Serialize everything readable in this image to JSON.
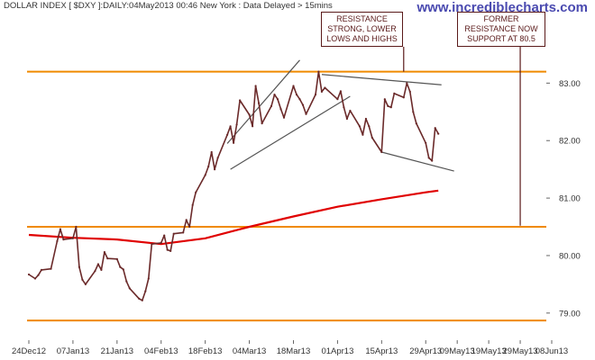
{
  "header": {
    "title": "DOLLAR INDEX [ $DXY ]:DAILY:04May2013 00:46 New York : Data Delayed > 15mins",
    "watermark": "www.incrediblecharts.com"
  },
  "callouts": [
    {
      "lines": [
        "RESISTANCE",
        "STRONG, LOWER",
        "LOWS AND HIGHS"
      ]
    },
    {
      "lines": [
        "FORMER",
        "RESISTANCE NOW",
        "SUPPORT AT 80.5"
      ]
    }
  ],
  "colors": {
    "price": "#6b2a2a",
    "ma": "#e00000",
    "levels": "#f08a00",
    "trend": "#555555",
    "callout_border": "#5a1a1a",
    "watermark": "#4a4ab0"
  },
  "chart_data": {
    "type": "line",
    "ylim": [
      78.7,
      83.35
    ],
    "yticks": [
      79.0,
      80.0,
      81.0,
      82.0,
      83.0
    ],
    "ytick_labels": [
      "79.00",
      "80.00",
      "81.00",
      "82.00",
      "83.00"
    ],
    "xticks": [
      {
        "label": "24Dec12",
        "date": "2012-12-24"
      },
      {
        "label": "07Jan13",
        "date": "2013-01-07"
      },
      {
        "label": "21Jan13",
        "date": "2013-01-21"
      },
      {
        "label": "04Feb13",
        "date": "2013-02-04"
      },
      {
        "label": "18Feb13",
        "date": "2013-02-18"
      },
      {
        "label": "04Mar13",
        "date": "2013-03-04"
      },
      {
        "label": "18Mar13",
        "date": "2013-03-18"
      },
      {
        "label": "01Apr13",
        "date": "2013-04-01"
      },
      {
        "label": "15Apr13",
        "date": "2013-04-15"
      },
      {
        "label": "29Apr13",
        "date": "2013-04-29"
      },
      {
        "label": "09May13",
        "date": "2013-05-09"
      },
      {
        "label": "19May13",
        "date": "2013-05-19"
      },
      {
        "label": "29May13",
        "date": "2013-05-29"
      },
      {
        "label": "08Jun13",
        "date": "2013-06-08"
      }
    ],
    "grid": false,
    "legend": "none",
    "series": [
      {
        "key": "price",
        "points": [
          [
            "2012-12-24",
            79.67
          ],
          [
            "2012-12-26",
            79.6
          ],
          [
            "2012-12-27",
            79.66
          ],
          [
            "2012-12-28",
            79.75
          ],
          [
            "2012-12-31",
            79.77
          ],
          [
            "2013-01-02",
            80.25
          ],
          [
            "2013-01-03",
            80.46
          ],
          [
            "2013-01-04",
            80.28
          ],
          [
            "2013-01-07",
            80.3
          ],
          [
            "2013-01-08",
            80.5
          ],
          [
            "2013-01-09",
            79.8
          ],
          [
            "2013-01-10",
            79.58
          ],
          [
            "2013-01-11",
            79.5
          ],
          [
            "2013-01-14",
            79.73
          ],
          [
            "2013-01-15",
            79.85
          ],
          [
            "2013-01-16",
            79.75
          ],
          [
            "2013-01-17",
            80.06
          ],
          [
            "2013-01-18",
            79.95
          ],
          [
            "2013-01-21",
            79.94
          ],
          [
            "2013-01-22",
            79.8
          ],
          [
            "2013-01-23",
            79.76
          ],
          [
            "2013-01-24",
            79.55
          ],
          [
            "2013-01-25",
            79.43
          ],
          [
            "2013-01-28",
            79.25
          ],
          [
            "2013-01-29",
            79.22
          ],
          [
            "2013-01-30",
            79.38
          ],
          [
            "2013-01-31",
            79.6
          ],
          [
            "2013-02-01",
            80.2
          ],
          [
            "2013-02-04",
            80.22
          ],
          [
            "2013-02-05",
            80.35
          ],
          [
            "2013-02-06",
            80.1
          ],
          [
            "2013-02-07",
            80.08
          ],
          [
            "2013-02-08",
            80.38
          ],
          [
            "2013-02-11",
            80.4
          ],
          [
            "2013-02-12",
            80.62
          ],
          [
            "2013-02-13",
            80.5
          ],
          [
            "2013-02-14",
            80.88
          ],
          [
            "2013-02-15",
            81.1
          ],
          [
            "2013-02-18",
            81.4
          ],
          [
            "2013-02-19",
            81.55
          ],
          [
            "2013-02-20",
            81.8
          ],
          [
            "2013-02-21",
            81.5
          ],
          [
            "2013-02-22",
            81.7
          ],
          [
            "2013-02-25",
            82.1
          ],
          [
            "2013-02-26",
            82.25
          ],
          [
            "2013-02-27",
            81.96
          ],
          [
            "2013-02-28",
            82.28
          ],
          [
            "2013-03-01",
            82.7
          ],
          [
            "2013-03-04",
            82.45
          ],
          [
            "2013-03-05",
            82.25
          ],
          [
            "2013-03-06",
            82.95
          ],
          [
            "2013-03-07",
            82.65
          ],
          [
            "2013-03-08",
            82.3
          ],
          [
            "2013-03-11",
            82.6
          ],
          [
            "2013-03-12",
            82.8
          ],
          [
            "2013-03-13",
            82.72
          ],
          [
            "2013-03-14",
            82.55
          ],
          [
            "2013-03-15",
            82.4
          ],
          [
            "2013-03-18",
            82.95
          ],
          [
            "2013-03-19",
            82.8
          ],
          [
            "2013-03-20",
            82.72
          ],
          [
            "2013-03-21",
            82.62
          ],
          [
            "2013-03-22",
            82.46
          ],
          [
            "2013-03-25",
            82.8
          ],
          [
            "2013-03-26",
            83.2
          ],
          [
            "2013-03-27",
            82.85
          ],
          [
            "2013-03-28",
            82.92
          ],
          [
            "2013-04-01",
            82.72
          ],
          [
            "2013-04-02",
            82.86
          ],
          [
            "2013-04-03",
            82.58
          ],
          [
            "2013-04-04",
            82.38
          ],
          [
            "2013-04-05",
            82.52
          ],
          [
            "2013-04-08",
            82.25
          ],
          [
            "2013-04-09",
            82.1
          ],
          [
            "2013-04-10",
            82.38
          ],
          [
            "2013-04-11",
            82.25
          ],
          [
            "2013-04-12",
            82.05
          ],
          [
            "2013-04-15",
            81.8
          ],
          [
            "2013-04-16",
            82.72
          ],
          [
            "2013-04-17",
            82.6
          ],
          [
            "2013-04-18",
            82.58
          ],
          [
            "2013-04-19",
            82.82
          ],
          [
            "2013-04-22",
            82.75
          ],
          [
            "2013-04-23",
            83.0
          ],
          [
            "2013-04-24",
            82.85
          ],
          [
            "2013-04-25",
            82.5
          ],
          [
            "2013-04-26",
            82.3
          ],
          [
            "2013-04-29",
            81.96
          ],
          [
            "2013-04-30",
            81.7
          ],
          [
            "2013-05-01",
            81.65
          ],
          [
            "2013-05-02",
            82.22
          ],
          [
            "2013-05-03",
            82.12
          ]
        ]
      },
      {
        "key": "moving-average",
        "points": [
          [
            "2012-12-24",
            80.36
          ],
          [
            "2013-01-07",
            80.31
          ],
          [
            "2013-01-21",
            80.28
          ],
          [
            "2013-02-04",
            80.2
          ],
          [
            "2013-02-18",
            80.3
          ],
          [
            "2013-03-04",
            80.5
          ],
          [
            "2013-03-18",
            80.68
          ],
          [
            "2013-04-01",
            80.85
          ],
          [
            "2013-04-15",
            80.98
          ],
          [
            "2013-04-29",
            81.1
          ],
          [
            "2013-05-03",
            81.13
          ]
        ]
      }
    ],
    "horizontal_levels": [
      83.2,
      80.5,
      78.87
    ],
    "trend_lines": [
      {
        "from": [
          "2013-02-25",
          81.95
        ],
        "to": [
          "2013-03-20",
          83.4
        ]
      },
      {
        "from": [
          "2013-02-26",
          81.5
        ],
        "to": [
          "2013-04-05",
          82.77
        ]
      },
      {
        "from": [
          "2013-03-27",
          83.15
        ],
        "to": [
          "2013-05-04",
          82.97
        ]
      },
      {
        "from": [
          "2013-04-15",
          81.8
        ],
        "to": [
          "2013-05-08",
          81.47
        ]
      }
    ],
    "vertical_markers": [
      {
        "date": "2013-04-22",
        "from": 83.2,
        "to": 83.35
      },
      {
        "date": "2013-05-29",
        "from": 80.52,
        "to": 83.35
      }
    ]
  }
}
